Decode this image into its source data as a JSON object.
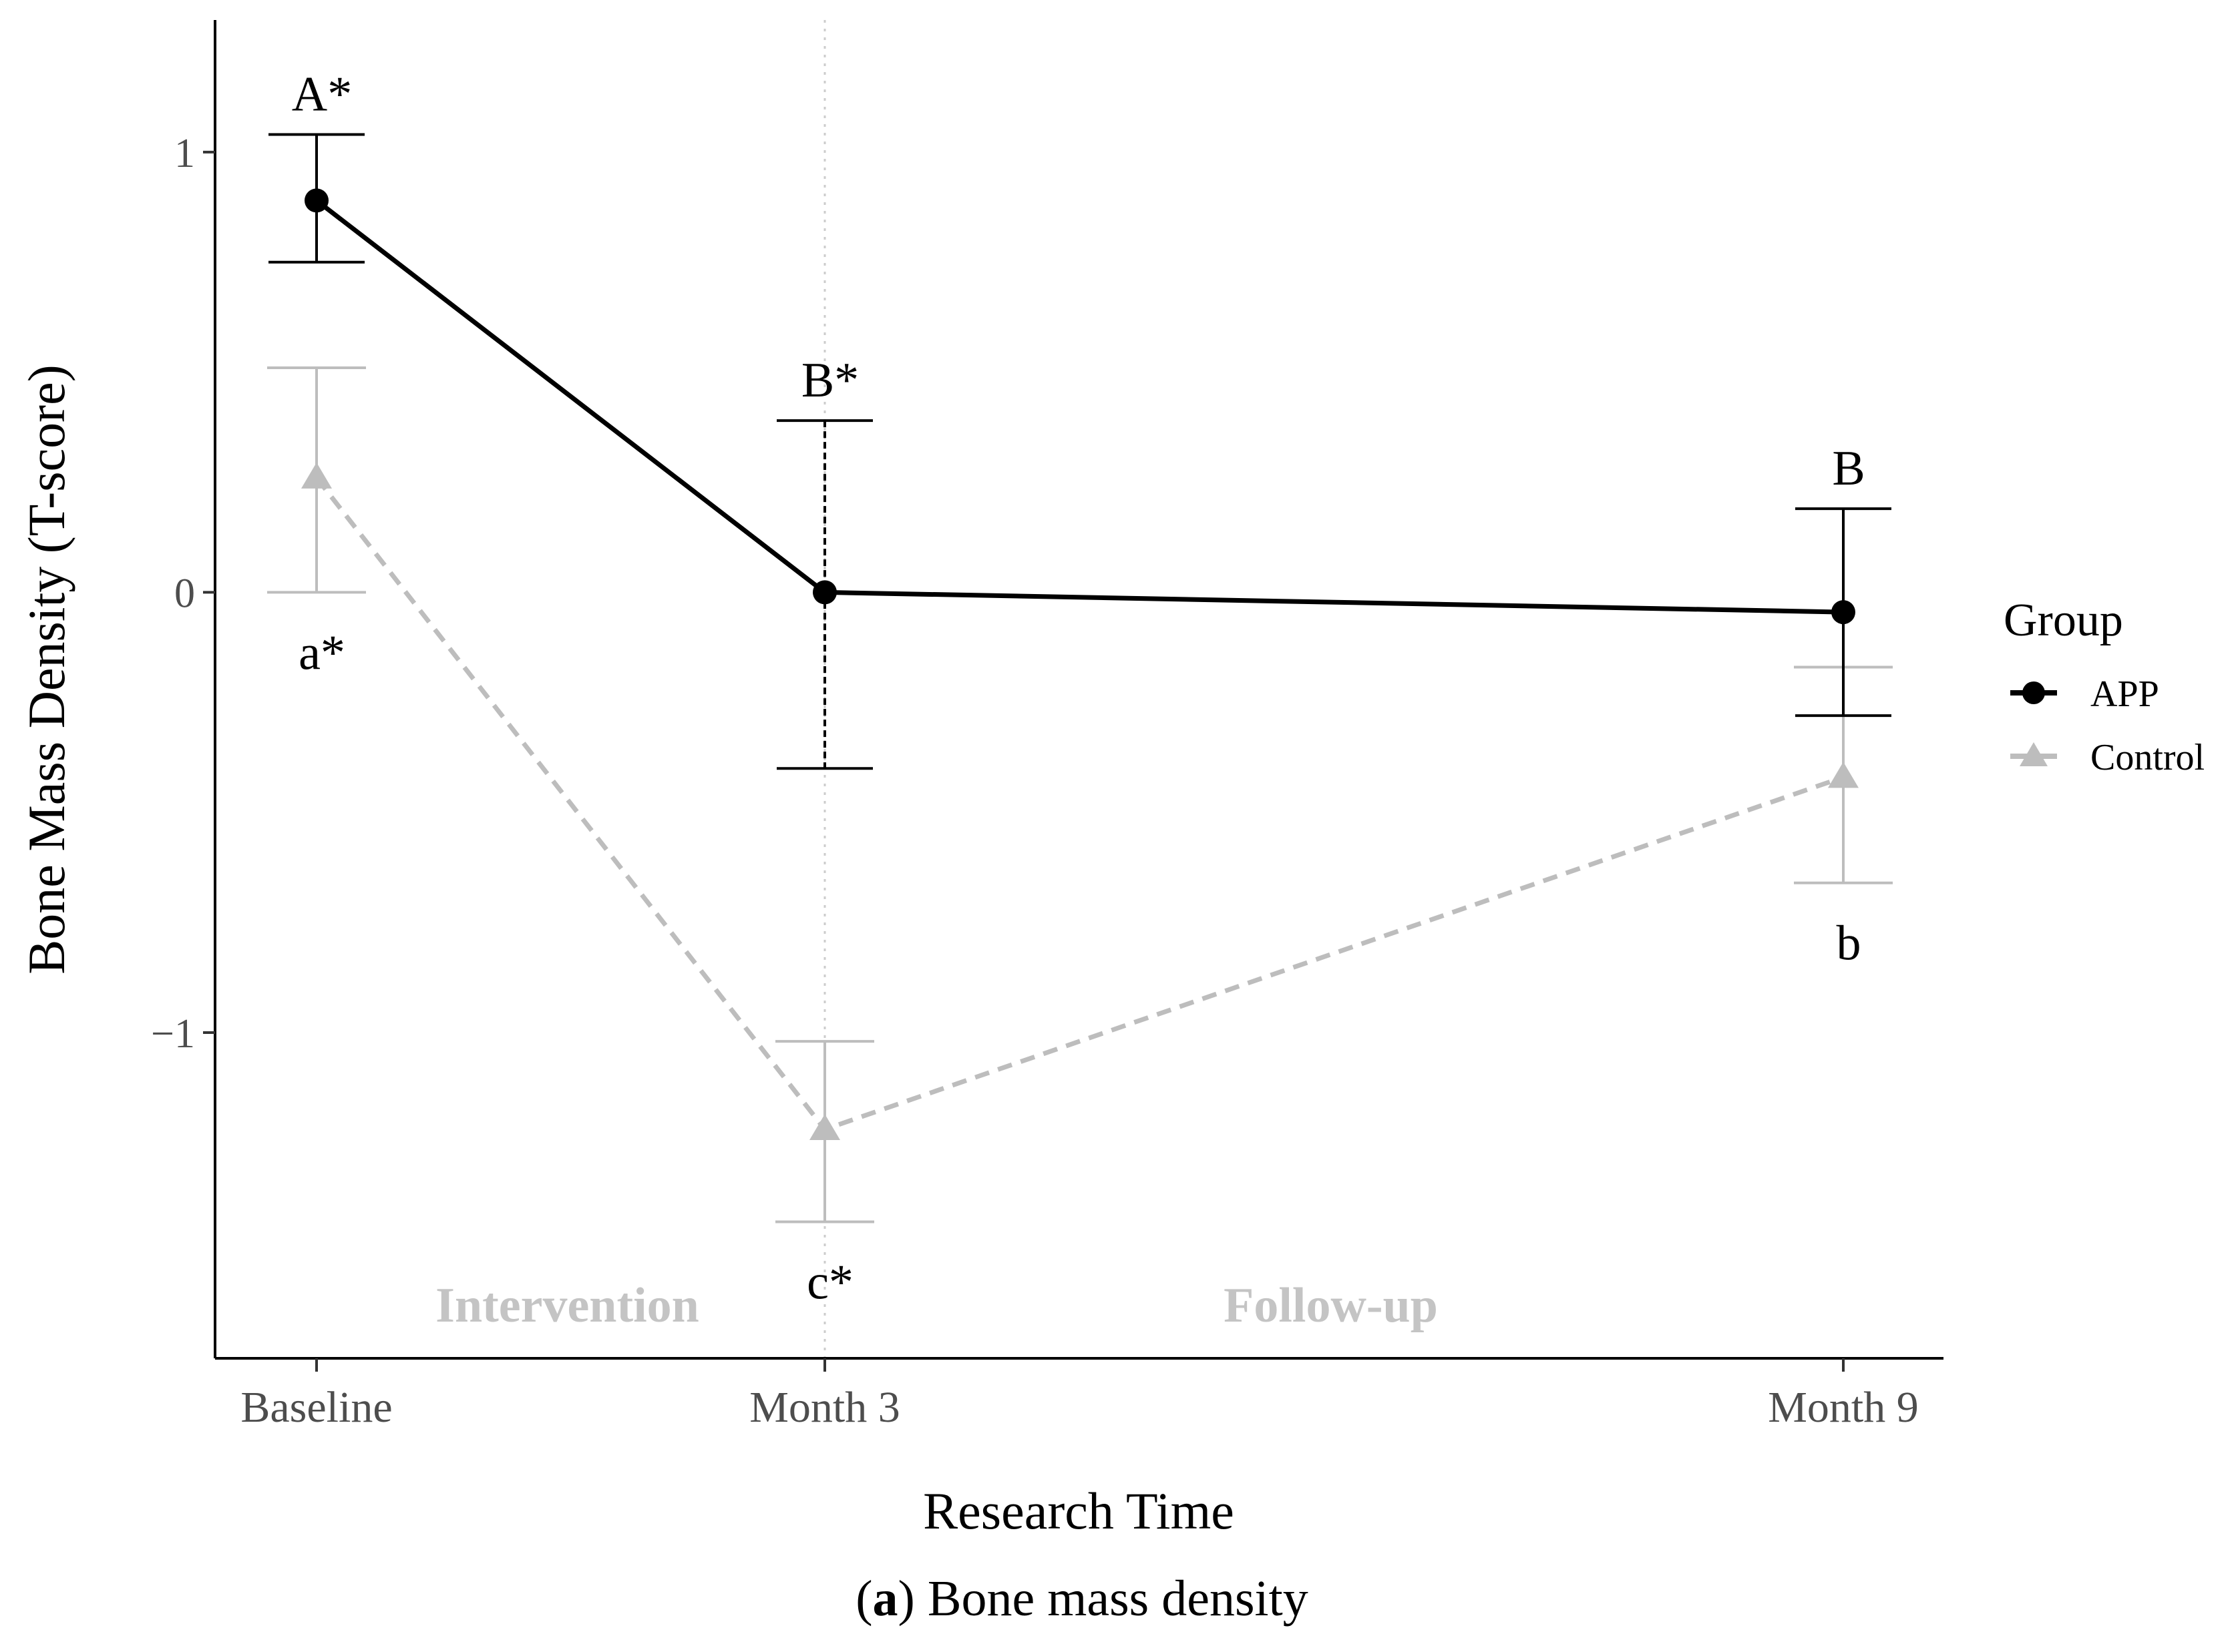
{
  "chart_data": {
    "type": "line",
    "categories": [
      "Baseline",
      "Month 3",
      "Month 9"
    ],
    "ylabel": "Bone Mass Density (T-score)",
    "xlabel": "Research Time",
    "ylim": [
      -1.74,
      1.3
    ],
    "yticks": [
      {
        "value": 1,
        "label": "1"
      },
      {
        "value": 0,
        "label": "0"
      },
      {
        "value": -1,
        "label": "−1"
      }
    ],
    "grid": false,
    "legend": {
      "title": "Group",
      "position": "right"
    },
    "series": [
      {
        "name": "APP",
        "color": "#000000",
        "marker": "circle",
        "line_style": "solid",
        "values": [
          0.89,
          0.0,
          -0.045
        ],
        "error_low": [
          0.75,
          -0.4,
          -0.28
        ],
        "error_high": [
          1.04,
          0.39,
          0.19
        ],
        "labels": [
          "A*",
          "B*",
          "B"
        ]
      },
      {
        "name": "Control",
        "color": "#bdbdbd",
        "marker": "triangle",
        "line_style": "dashed",
        "values": [
          0.26,
          -1.22,
          -0.42
        ],
        "error_low": [
          0.0,
          -1.43,
          -0.66
        ],
        "error_high": [
          0.51,
          -1.02,
          -0.17
        ],
        "labels": [
          "a*",
          "c*",
          "b"
        ]
      }
    ],
    "annotations": [
      {
        "text": "Intervention",
        "category_span": [
          0,
          1
        ]
      },
      {
        "text": "Follow-up",
        "category_span": [
          1,
          2
        ]
      }
    ],
    "vline_at_category": 1
  },
  "caption": {
    "bold_part": "a",
    "prefix": "(",
    "suffix": ") Bone mass density"
  }
}
